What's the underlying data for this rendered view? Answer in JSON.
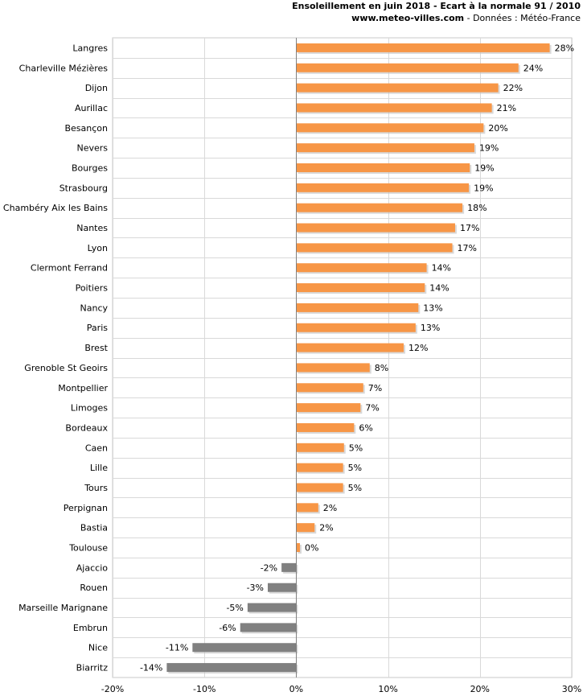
{
  "header": {
    "title": "Ensoleillement en juin 2018 - Ecart à la normale 91 / 2010",
    "website": "www.meteo-villes.com",
    "source": " - Données : Météo-France"
  },
  "chart_data": {
    "type": "bar",
    "orientation": "horizontal",
    "title": "Ensoleillement en juin 2018 - Ecart à la normale 91 / 2010",
    "xlabel": "",
    "ylabel": "",
    "xlim": [
      -20,
      30
    ],
    "ticks": [
      -20,
      -10,
      0,
      10,
      20,
      30
    ],
    "tick_labels": [
      "-20%",
      "-10%",
      "0%",
      "10%",
      "20%",
      "30%"
    ],
    "grid": true,
    "positive_color": "#f79646",
    "negative_color": "#808080",
    "categories": [
      "Langres",
      "Charleville Mézières",
      "Dijon",
      "Aurillac",
      "Besançon",
      "Nevers",
      "Bourges",
      "Strasbourg",
      "Chambéry Aix les Bains",
      "Nantes",
      "Lyon",
      "Clermont Ferrand",
      "Poitiers",
      "Nancy",
      "Paris",
      "Brest",
      "Grenoble St Geoirs",
      "Montpellier",
      "Limoges",
      "Bordeaux",
      "Caen",
      "Lille",
      "Tours",
      "Perpignan",
      "Bastia",
      "Toulouse",
      "Ajaccio",
      "Rouen",
      "Marseille Marignane",
      "Embrun",
      "Nice",
      "Biarritz"
    ],
    "values": [
      27.6,
      24.2,
      22.0,
      21.3,
      20.4,
      19.4,
      18.9,
      18.8,
      18.1,
      17.3,
      17.0,
      14.2,
      14.0,
      13.3,
      13.0,
      11.7,
      8.0,
      7.3,
      7.0,
      6.3,
      5.2,
      5.1,
      5.1,
      2.4,
      2.0,
      0.4,
      -1.6,
      -3.1,
      -5.3,
      -6.1,
      -11.3,
      -14.1
    ],
    "value_labels": [
      "28%",
      "24%",
      "22%",
      "21%",
      "20%",
      "19%",
      "19%",
      "19%",
      "18%",
      "17%",
      "17%",
      "14%",
      "14%",
      "13%",
      "13%",
      "12%",
      "8%",
      "7%",
      "7%",
      "6%",
      "5%",
      "5%",
      "5%",
      "2%",
      "2%",
      "0%",
      "-2%",
      "-3%",
      "-5%",
      "-6%",
      "-11%",
      "-14%"
    ]
  }
}
